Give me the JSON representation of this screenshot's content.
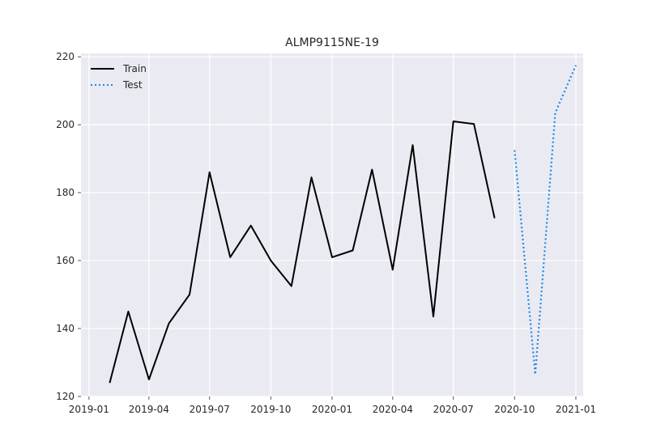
{
  "chart_data": {
    "type": "line",
    "title": "ALMP9115NE-19",
    "xlabel": "",
    "ylabel": "",
    "grid": true,
    "legend_position": "top-left",
    "x_ticks": [
      "2019-01",
      "2019-04",
      "2019-07",
      "2019-10",
      "2020-01",
      "2020-04",
      "2020-07",
      "2020-10",
      "2021-01"
    ],
    "y_ticks": [
      120,
      140,
      160,
      180,
      200,
      220
    ],
    "xlim": [
      "2018-12-20",
      "2021-01-12"
    ],
    "ylim": [
      120,
      221
    ],
    "series": [
      {
        "name": "Train",
        "color": "#000000",
        "style": "solid",
        "points": [
          {
            "x": "2019-02-01",
            "y": 124
          },
          {
            "x": "2019-03-01",
            "y": 145
          },
          {
            "x": "2019-04-01",
            "y": 125
          },
          {
            "x": "2019-05-01",
            "y": 141.5
          },
          {
            "x": "2019-06-01",
            "y": 150
          },
          {
            "x": "2019-07-01",
            "y": 186
          },
          {
            "x": "2019-08-01",
            "y": 161
          },
          {
            "x": "2019-09-01",
            "y": 170.3
          },
          {
            "x": "2019-10-01",
            "y": 160
          },
          {
            "x": "2019-11-01",
            "y": 152.5
          },
          {
            "x": "2019-12-01",
            "y": 184.5
          },
          {
            "x": "2020-01-01",
            "y": 161
          },
          {
            "x": "2020-02-01",
            "y": 163
          },
          {
            "x": "2020-03-01",
            "y": 186.8
          },
          {
            "x": "2020-04-01",
            "y": 157.3
          },
          {
            "x": "2020-05-01",
            "y": 194
          },
          {
            "x": "2020-06-01",
            "y": 143.5
          },
          {
            "x": "2020-07-01",
            "y": 201
          },
          {
            "x": "2020-08-01",
            "y": 200.2
          },
          {
            "x": "2020-09-01",
            "y": 172.5
          }
        ]
      },
      {
        "name": "Test",
        "color": "#1e88e5",
        "style": "dotted",
        "points": [
          {
            "x": "2020-10-01",
            "y": 192.5
          },
          {
            "x": "2020-11-01",
            "y": 126.5
          },
          {
            "x": "2020-12-01",
            "y": 203.5
          },
          {
            "x": "2021-01-01",
            "y": 217.5
          }
        ]
      }
    ]
  }
}
